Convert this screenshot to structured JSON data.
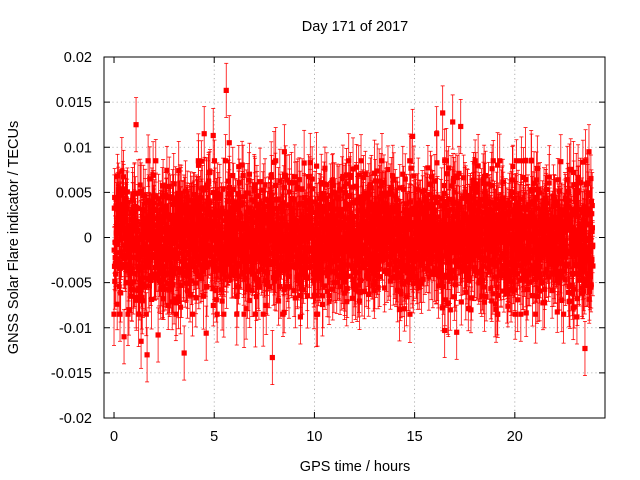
{
  "chart_data": {
    "type": "scatter",
    "title": "Day 171 of 2017",
    "xlabel": "GPS time / hours",
    "ylabel": "GNSS Solar Flare indicator / TECUs",
    "xlim": [
      -0.5,
      24.5
    ],
    "ylim": [
      -0.02,
      0.02
    ],
    "x_ticks": [
      0,
      5,
      10,
      15,
      20
    ],
    "x_tick_labels": [
      "0",
      "5",
      "10",
      "15",
      "20"
    ],
    "y_ticks": [
      -0.02,
      -0.015,
      -0.01,
      -0.005,
      0,
      0.005,
      0.01,
      0.015,
      0.02
    ],
    "y_tick_labels": [
      "-0.02",
      "-0.015",
      "-0.01",
      "-0.005",
      "0",
      "0.005",
      "0.01",
      "0.015",
      "0.02"
    ],
    "grid": true,
    "series_color": "#ff0000",
    "series": [
      {
        "name": "GNSS Solar Flare indicator",
        "marker": "square",
        "error_bars": true,
        "x_range": [
          0,
          23.9
        ],
        "sampling_interval_hours": 0.0083,
        "typical_error": 0.003,
        "note": "dense noise cloud centred on 0, mostly within +/-0.007 TECU",
        "notable_points": [
          {
            "x": 0.1,
            "y": 0.0035
          },
          {
            "x": 0.3,
            "y": -0.0085
          },
          {
            "x": 0.5,
            "y": -0.011
          },
          {
            "x": 1.1,
            "y": 0.0125
          },
          {
            "x": 1.35,
            "y": -0.0115
          },
          {
            "x": 1.65,
            "y": -0.013
          },
          {
            "x": 2.2,
            "y": -0.0108
          },
          {
            "x": 3.5,
            "y": -0.0128
          },
          {
            "x": 4.5,
            "y": 0.0115
          },
          {
            "x": 4.6,
            "y": -0.0106
          },
          {
            "x": 4.95,
            "y": 0.0113
          },
          {
            "x": 5.6,
            "y": 0.0163
          },
          {
            "x": 5.75,
            "y": 0.0105
          },
          {
            "x": 7.9,
            "y": -0.0133
          },
          {
            "x": 8.5,
            "y": 0.0095
          },
          {
            "x": 9.3,
            "y": -0.0088
          },
          {
            "x": 14.9,
            "y": 0.0112
          },
          {
            "x": 16.1,
            "y": 0.0115
          },
          {
            "x": 16.4,
            "y": 0.0138
          },
          {
            "x": 16.5,
            "y": -0.0103
          },
          {
            "x": 16.9,
            "y": 0.0128
          },
          {
            "x": 17.1,
            "y": -0.0105
          },
          {
            "x": 17.3,
            "y": 0.0123
          },
          {
            "x": 20.3,
            "y": -0.0085
          },
          {
            "x": 23.1,
            "y": -0.0088
          },
          {
            "x": 23.5,
            "y": -0.0123
          },
          {
            "x": 23.7,
            "y": 0.0095
          }
        ]
      }
    ]
  }
}
